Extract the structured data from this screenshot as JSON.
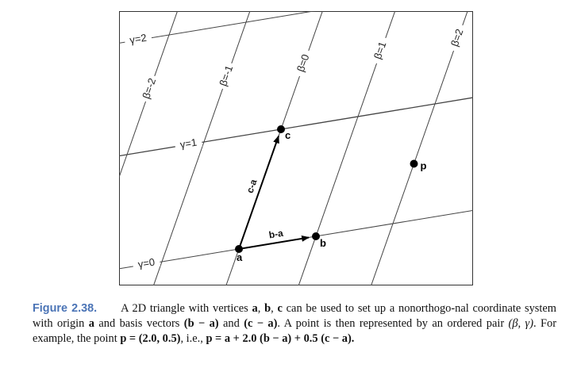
{
  "figure": {
    "beta_lines": [
      {
        "label": "β=-2",
        "beta": -2
      },
      {
        "label": "β=-1",
        "beta": -1
      },
      {
        "label": "β=0",
        "beta": 0
      },
      {
        "label": "β=1",
        "beta": 1
      },
      {
        "label": "β=2",
        "beta": 2
      }
    ],
    "gamma_lines": [
      {
        "label": "γ=0",
        "gamma": 0
      },
      {
        "label": "γ=1",
        "gamma": 1
      },
      {
        "label": "γ=2",
        "gamma": 2
      }
    ],
    "points": [
      {
        "label": "a",
        "beta": 0,
        "gamma": 0
      },
      {
        "label": "b",
        "beta": 1,
        "gamma": 0
      },
      {
        "label": "c",
        "beta": 0,
        "gamma": 1
      },
      {
        "label": "p",
        "beta": 2.0,
        "gamma": 0.5
      }
    ],
    "vectors": [
      {
        "label": "b-a",
        "from": "a",
        "to": "b"
      },
      {
        "label": "c-a",
        "from": "a",
        "to": "c"
      }
    ]
  },
  "caption": {
    "figure_number": "Figure 2.38.",
    "text_1": "A 2D triangle with vertices ",
    "a": "a",
    "comma_1": ", ",
    "b": "b",
    "comma_2": ", ",
    "c": "c",
    "text_2": " can be used to set up a nonorthogo-nal coordinate system with origin ",
    "a2": "a",
    "text_3": " and basis vectors ",
    "vec1": "(b − a)",
    "text_4": " and ",
    "vec2": "(c − a)",
    "text_5": ". A point is then represented by an ordered pair ",
    "pair": "(β, γ)",
    "text_6": ". For example, the point ",
    "p_def": "p = (2.0, 0.5)",
    "text_7": ", i.e., ",
    "p_expr": "p = a + 2.0 (b − a) + 0.5 (c − a)."
  }
}
